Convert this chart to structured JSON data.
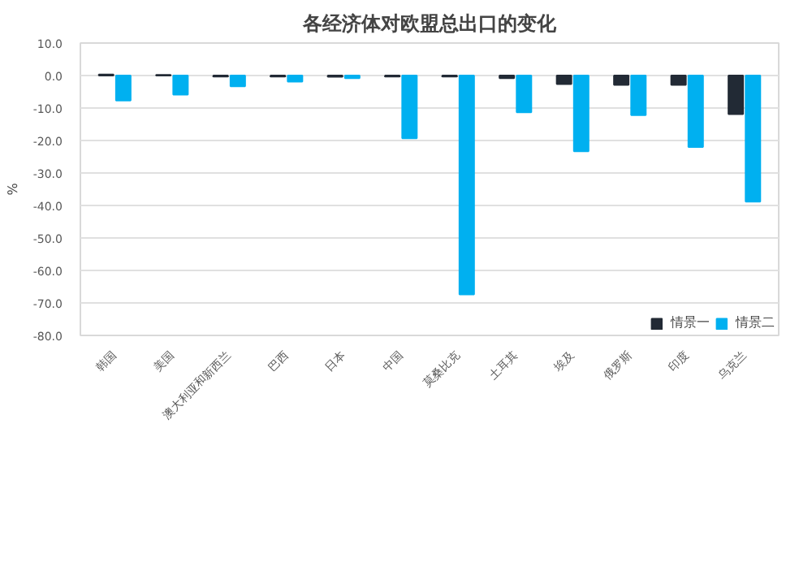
{
  "chart_data": {
    "type": "bar",
    "title": "各经济体对欧盟总出口的变化",
    "ylabel": "%",
    "categories": [
      "韩国",
      "美国",
      "澳大利亚和新西兰",
      "巴西",
      "日本",
      "中国",
      "莫桑比克",
      "土耳其",
      "埃及",
      "俄罗斯",
      "印度",
      "乌克兰"
    ],
    "series": [
      {
        "name": "情景一",
        "color": "#222a35",
        "values": [
          0.3,
          0.2,
          -0.3,
          -0.3,
          -0.4,
          -0.3,
          -0.3,
          -0.8,
          -2.6,
          -2.9,
          -2.9,
          -11.9
        ]
      },
      {
        "name": "情景二",
        "color": "#00b0f0",
        "values": [
          -7.7,
          -5.9,
          -3.3,
          -1.9,
          -0.8,
          -19.3,
          -67.4,
          -11.3,
          -23.3,
          -12.2,
          -22.0,
          -38.8
        ]
      }
    ],
    "ylim": [
      -80,
      10
    ],
    "yticks": [
      {
        "value": 10,
        "label": "10.0"
      },
      {
        "value": 0,
        "label": "0.0"
      },
      {
        "value": -10,
        "label": "-10.0"
      },
      {
        "value": -20,
        "label": "-20.0"
      },
      {
        "value": -30,
        "label": "-30.0"
      },
      {
        "value": -40,
        "label": "-40.0"
      },
      {
        "value": -50,
        "label": "-50.0"
      },
      {
        "value": -60,
        "label": "-60.0"
      },
      {
        "value": -70,
        "label": "-70.0"
      },
      {
        "value": -80,
        "label": "-80.0"
      }
    ],
    "grid": "y",
    "legend": "bottom right"
  }
}
